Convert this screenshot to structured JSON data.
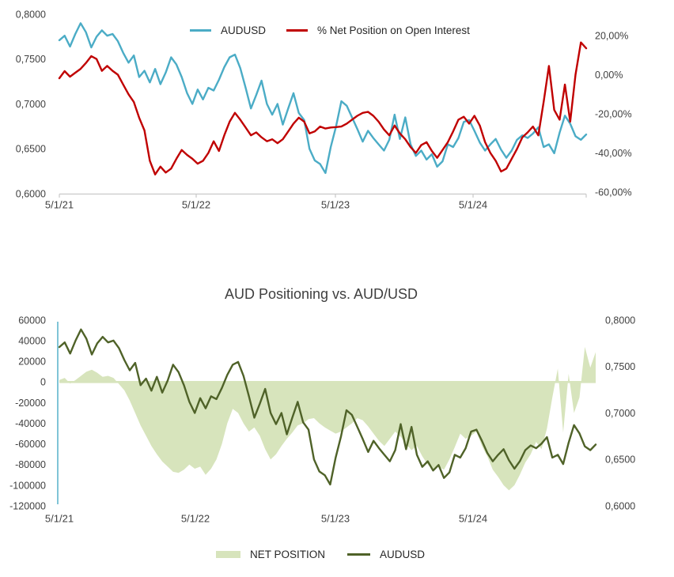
{
  "page": {
    "background": "#FFFFFF"
  },
  "styles": {
    "axis_line_gray": "#C9C9C9",
    "label_color": "#404040",
    "title_color": "#3F3F3F"
  },
  "chart_data": [
    {
      "id": "net-position-pct-vs-audusd",
      "type": "line",
      "title": "",
      "legend_position": "top",
      "grid": false,
      "x_tick_labels": [
        "5/1/21",
        "5/1/22",
        "5/1/23",
        "5/1/24"
      ],
      "left_axis": {
        "min": 0.6,
        "max": 0.8,
        "tick_values": [
          0.8,
          0.75,
          0.7,
          0.65,
          0.6
        ],
        "tick_labels": [
          "0,8000",
          "0,7500",
          "0,7000",
          "0,6500",
          "0,6000"
        ]
      },
      "right_axis": {
        "min": -60,
        "max": 20,
        "tick_values": [
          20,
          0,
          -20,
          -40,
          -60
        ],
        "tick_labels": [
          "20,00%",
          "0,00%",
          "-20,00%",
          "-40,00%",
          "-60,00%"
        ]
      },
      "series": [
        {
          "name": "AUDUSD",
          "type": "line",
          "axis": "left",
          "color": "#4BACC6",
          "values": [
            0.771,
            0.776,
            0.764,
            0.778,
            0.79,
            0.78,
            0.763,
            0.775,
            0.782,
            0.776,
            0.778,
            0.77,
            0.757,
            0.746,
            0.754,
            0.73,
            0.737,
            0.724,
            0.739,
            0.722,
            0.735,
            0.752,
            0.744,
            0.73,
            0.712,
            0.7,
            0.716,
            0.705,
            0.718,
            0.715,
            0.727,
            0.741,
            0.752,
            0.755,
            0.74,
            0.718,
            0.695,
            0.71,
            0.726,
            0.7,
            0.688,
            0.7,
            0.677,
            0.695,
            0.712,
            0.69,
            0.682,
            0.65,
            0.637,
            0.633,
            0.623,
            0.652,
            0.675,
            0.703,
            0.698,
            0.685,
            0.672,
            0.658,
            0.67,
            0.662,
            0.655,
            0.648,
            0.66,
            0.688,
            0.661,
            0.685,
            0.655,
            0.642,
            0.648,
            0.638,
            0.644,
            0.63,
            0.636,
            0.655,
            0.652,
            0.662,
            0.68,
            0.682,
            0.67,
            0.657,
            0.648,
            0.655,
            0.661,
            0.649,
            0.64,
            0.648,
            0.66,
            0.665,
            0.662,
            0.667,
            0.674,
            0.652,
            0.655,
            0.645,
            0.668,
            0.687,
            0.678,
            0.664,
            0.66,
            0.666
          ]
        },
        {
          "name": "% Net Position on Open Interest",
          "type": "line",
          "axis": "right",
          "color": "#C00000",
          "values": [
            -1.8,
            1.8,
            -1,
            1,
            3,
            6,
            9.5,
            8,
            2,
            4.5,
            2,
            0,
            -5,
            -10,
            -14,
            -22,
            -28.5,
            -44,
            -51,
            -47,
            -50,
            -48,
            -43,
            -38.5,
            -41,
            -43,
            -45.5,
            -44,
            -40,
            -34,
            -39,
            -31,
            -24,
            -19.5,
            -23,
            -27,
            -31,
            -29.5,
            -32,
            -34,
            -33,
            -35,
            -33,
            -29,
            -25,
            -22,
            -24,
            -30,
            -29,
            -26.5,
            -27.5,
            -27,
            -26.8,
            -26.5,
            -25,
            -23,
            -21,
            -19.5,
            -19,
            -21,
            -24,
            -28,
            -31,
            -26,
            -30,
            -33,
            -37,
            -40,
            -36,
            -34.5,
            -39,
            -42.5,
            -38.5,
            -34.5,
            -29,
            -23,
            -21.5,
            -25,
            -21,
            -26,
            -34.5,
            -40,
            -44,
            -49.5,
            -48,
            -43,
            -38,
            -32,
            -29.5,
            -26.5,
            -31,
            -14,
            4.5,
            -18,
            -23,
            -5,
            -24,
            0,
            16.5,
            13.5
          ]
        }
      ]
    },
    {
      "id": "aud-positioning-vs-audusd",
      "type": "area-line",
      "title": "AUD Positioning vs. AUD/USD",
      "legend_position": "bottom",
      "grid": false,
      "value_axis_line_color": "#4BACC6",
      "x_tick_labels": [
        "5/1/21",
        "5/1/22",
        "5/1/23",
        "5/1/24"
      ],
      "left_axis": {
        "min": -120000,
        "max": 60000,
        "tick_values": [
          60000,
          40000,
          20000,
          0,
          -20000,
          -40000,
          -60000,
          -80000,
          -100000,
          -120000
        ],
        "tick_labels": [
          "60000",
          "40000",
          "20000",
          "0",
          "-20000",
          "-40000",
          "-60000",
          "-80000",
          "-100000",
          "-120000"
        ]
      },
      "right_axis": {
        "min": 0.6,
        "max": 0.8,
        "tick_values": [
          0.8,
          0.75,
          0.7,
          0.65,
          0.6
        ],
        "tick_labels": [
          "0,8000",
          "0,7500",
          "0,7000",
          "0,6500",
          "0,6000"
        ]
      },
      "series": [
        {
          "name": "NET POSITION",
          "type": "area",
          "axis": "left",
          "color": "#D7E4BC",
          "values": [
            2000,
            4000,
            -1500,
            2000,
            6000,
            10000,
            12000,
            9000,
            5000,
            6000,
            4000,
            -2000,
            -8000,
            -18000,
            -30000,
            -42000,
            -52000,
            -62000,
            -70000,
            -77000,
            -82000,
            -87000,
            -88000,
            -85000,
            -80000,
            -84000,
            -82000,
            -90000,
            -84000,
            -75000,
            -60000,
            -40000,
            -26000,
            -30000,
            -40000,
            -48000,
            -44000,
            -52000,
            -65000,
            -75000,
            -70000,
            -62000,
            -55000,
            -49000,
            -42000,
            -40000,
            -36000,
            -35000,
            -40000,
            -44000,
            -47000,
            -50000,
            -48000,
            -44000,
            -40000,
            -35000,
            -37000,
            -43000,
            -50000,
            -57000,
            -62000,
            -55000,
            -48000,
            -53000,
            -60000,
            -66000,
            -62000,
            -72000,
            -80000,
            -85000,
            -82000,
            -85000,
            -75000,
            -63000,
            -50000,
            -55000,
            -52000,
            -48000,
            -62000,
            -72000,
            -85000,
            -92000,
            -100000,
            -105000,
            -100000,
            -90000,
            -78000,
            -70000,
            -58000,
            -65000,
            -45000,
            -15000,
            13000,
            -49000,
            8000,
            -30000,
            -15000,
            34000,
            14000,
            29000
          ]
        },
        {
          "name": "AUDUSD",
          "type": "line",
          "axis": "right",
          "color": "#4F6228",
          "values": [
            0.771,
            0.776,
            0.764,
            0.778,
            0.79,
            0.78,
            0.763,
            0.775,
            0.782,
            0.776,
            0.778,
            0.77,
            0.757,
            0.746,
            0.754,
            0.73,
            0.737,
            0.724,
            0.739,
            0.722,
            0.735,
            0.752,
            0.744,
            0.73,
            0.712,
            0.7,
            0.716,
            0.705,
            0.718,
            0.715,
            0.727,
            0.741,
            0.752,
            0.755,
            0.74,
            0.718,
            0.695,
            0.71,
            0.726,
            0.7,
            0.688,
            0.7,
            0.677,
            0.695,
            0.712,
            0.69,
            0.682,
            0.65,
            0.637,
            0.633,
            0.623,
            0.652,
            0.675,
            0.703,
            0.698,
            0.685,
            0.672,
            0.658,
            0.67,
            0.662,
            0.655,
            0.648,
            0.66,
            0.688,
            0.661,
            0.685,
            0.655,
            0.642,
            0.648,
            0.638,
            0.644,
            0.63,
            0.636,
            0.655,
            0.652,
            0.662,
            0.68,
            0.682,
            0.67,
            0.657,
            0.648,
            0.655,
            0.661,
            0.649,
            0.64,
            0.648,
            0.66,
            0.665,
            0.662,
            0.667,
            0.674,
            0.652,
            0.655,
            0.645,
            0.668,
            0.687,
            0.678,
            0.664,
            0.66,
            0.666
          ]
        }
      ]
    }
  ]
}
